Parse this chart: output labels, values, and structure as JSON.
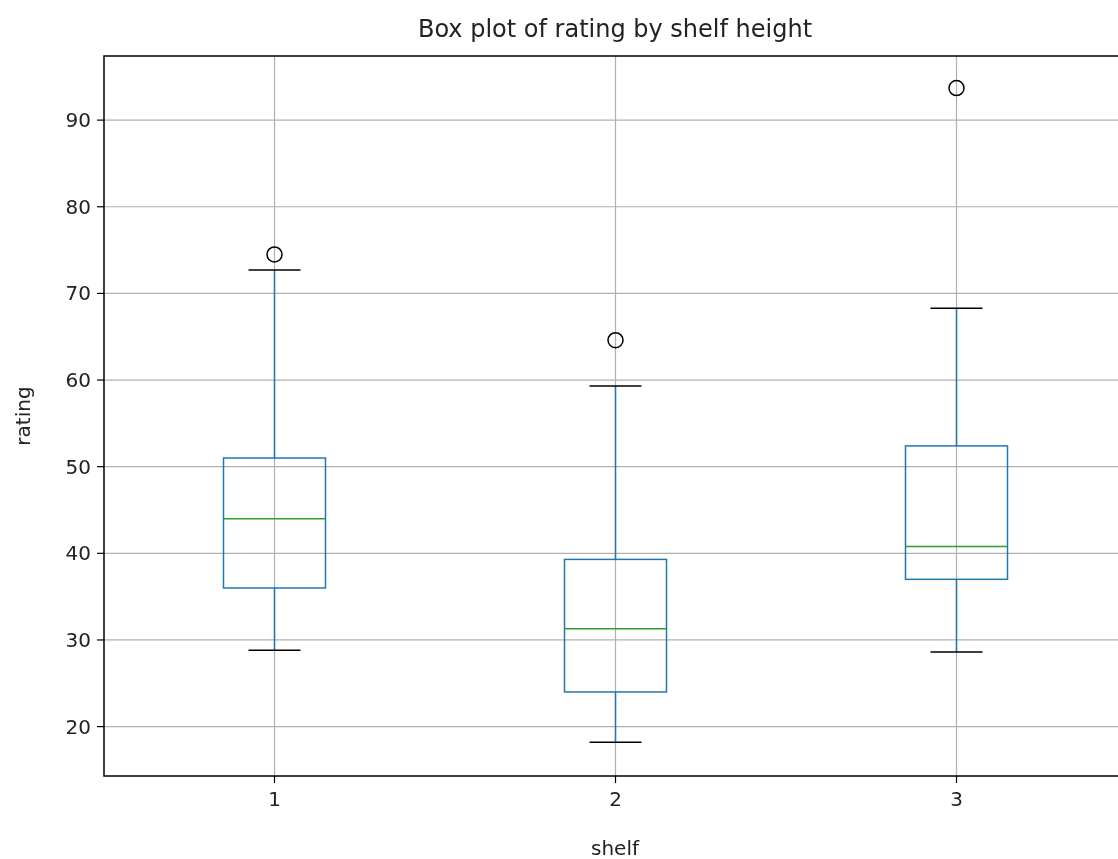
{
  "chart_data": {
    "type": "box",
    "title": "Box plot of rating by shelf height",
    "xlabel": "shelf",
    "ylabel": "rating",
    "categories": [
      "1",
      "2",
      "3"
    ],
    "boxes": [
      {
        "low": 28.8,
        "q1": 36.0,
        "median": 44.0,
        "q3": 51.0,
        "high": 72.7,
        "outliers": [
          74.5
        ]
      },
      {
        "low": 18.2,
        "q1": 24.0,
        "median": 31.3,
        "q3": 39.3,
        "high": 59.3,
        "outliers": [
          64.6
        ]
      },
      {
        "low": 28.6,
        "q1": 37.0,
        "median": 40.8,
        "q3": 52.4,
        "high": 68.3,
        "outliers": [
          93.7
        ]
      }
    ],
    "color": "#1f77b4",
    "ylim": [
      14.3,
      97.4
    ],
    "yticks": [
      20,
      30,
      40,
      50,
      60,
      70,
      80,
      90
    ],
    "grid": true,
    "marker": "circle"
  }
}
